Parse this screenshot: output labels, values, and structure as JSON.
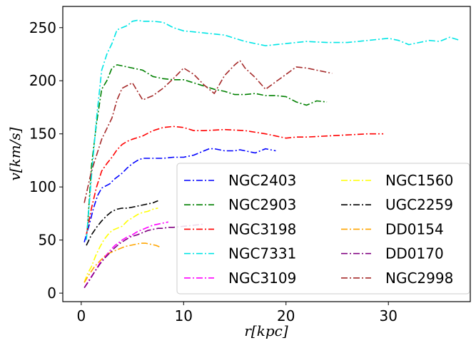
{
  "chart_data": {
    "type": "line",
    "title": "",
    "xlabel": "r[kpc]",
    "ylabel": "v[km/s]",
    "xlim": [
      -1.8,
      38.0
    ],
    "ylim": [
      -8,
      270
    ],
    "xticks": [
      0,
      10,
      20,
      30
    ],
    "yticks": [
      0,
      50,
      100,
      150,
      200,
      250
    ],
    "grid": false,
    "legend_position": "lower-right",
    "legend_columns": 2,
    "line_style": "dash-dot",
    "series": [
      {
        "name": "NGC2403",
        "color": "#0000ff",
        "x": [
          0.3,
          0.8,
          1.2,
          1.6,
          2.0,
          2.4,
          2.8,
          3.2,
          3.6,
          4.0,
          4.5,
          5.0,
          5.5,
          6.0,
          7.0,
          8.0,
          9.0,
          10.0,
          11.0,
          12.0,
          12.5,
          13.0,
          13.5,
          14.0,
          15.0,
          15.5,
          16.0,
          17.0,
          17.5,
          18.0,
          19.0
        ],
        "y": [
          48,
          65,
          80,
          92,
          99,
          101,
          103,
          107,
          110,
          113,
          118,
          122,
          125,
          127,
          127,
          127,
          128,
          128,
          130,
          134,
          136,
          136,
          135,
          134,
          134,
          135,
          134,
          132,
          134,
          136,
          134
        ]
      },
      {
        "name": "NGC2903",
        "color": "#008000",
        "x": [
          0.6,
          1.0,
          1.5,
          2.0,
          2.5,
          3.0,
          3.5,
          4.0,
          5.0,
          6.0,
          7.0,
          8.0,
          9.0,
          10.0,
          11.0,
          12.0,
          13.0,
          14.0,
          15.0,
          16.0,
          17.0,
          18.0,
          19.0,
          20.0,
          21.0,
          22.0,
          23.0,
          24.0
        ],
        "y": [
          60,
          120,
          160,
          192,
          200,
          212,
          215,
          214,
          212,
          210,
          204,
          202,
          201,
          201,
          198,
          195,
          192,
          190,
          187,
          187,
          188,
          186,
          186,
          185,
          180,
          177,
          181,
          180
        ]
      },
      {
        "name": "NGC3198",
        "color": "#ff0000",
        "x": [
          0.5,
          1.0,
          1.5,
          2.0,
          2.5,
          3.0,
          3.5,
          4.0,
          4.5,
          5.0,
          6.0,
          7.0,
          8.0,
          9.0,
          10.0,
          11.0,
          12.0,
          14.0,
          16.0,
          18.0,
          19.0,
          20.0,
          21.0,
          22.0,
          24.0,
          26.0,
          28.0,
          29.5
        ],
        "y": [
          55,
          80,
          100,
          115,
          122,
          128,
          135,
          140,
          143,
          145,
          148,
          153,
          156,
          157,
          156,
          153,
          153,
          154,
          153,
          150,
          148,
          146,
          147,
          147,
          148,
          149,
          150,
          150
        ]
      },
      {
        "name": "NGC7331",
        "color": "#00e5e5",
        "x": [
          0.5,
          1.0,
          1.5,
          2.0,
          2.5,
          3.0,
          3.5,
          4.0,
          4.5,
          5.0,
          5.5,
          6.0,
          7.0,
          8.0,
          9.0,
          10.0,
          11.0,
          12.0,
          13.0,
          14.0,
          15.0,
          16.0,
          17.0,
          18.0,
          19.0,
          20.0,
          22.0,
          24.0,
          26.0,
          28.0,
          30.0,
          31.0,
          32.0,
          33.0,
          34.0,
          35.0,
          36.0,
          37.0
        ],
        "y": [
          50,
          110,
          165,
          210,
          225,
          235,
          248,
          250,
          252,
          256,
          257,
          256,
          256,
          255,
          250,
          247,
          246,
          245,
          244,
          243,
          240,
          237,
          235,
          233,
          234,
          235,
          237,
          236,
          236,
          238,
          240,
          238,
          234,
          236,
          238,
          237,
          241,
          238
        ]
      },
      {
        "name": "NGC3109",
        "color": "#ff00ff",
        "x": [
          0.3,
          0.8,
          1.3,
          1.8,
          2.3,
          2.8,
          3.3,
          4.0,
          4.5,
          5.0,
          5.5,
          6.0,
          6.5,
          7.0,
          7.5,
          8.0,
          8.5
        ],
        "y": [
          5,
          13,
          20,
          28,
          34,
          40,
          45,
          50,
          53,
          55,
          58,
          60,
          62,
          64,
          65,
          66,
          67
        ]
      },
      {
        "name": "NGC1560",
        "color": "#ffff00",
        "x": [
          0.3,
          0.6,
          1.0,
          1.4,
          1.8,
          2.2,
          2.6,
          3.0,
          3.5,
          4.0,
          4.5,
          5.0,
          5.5,
          6.0,
          6.5,
          7.0,
          7.5
        ],
        "y": [
          10,
          18,
          25,
          35,
          43,
          50,
          55,
          59,
          61,
          63,
          68,
          71,
          74,
          76,
          77,
          79,
          80
        ]
      },
      {
        "name": "UGC2259",
        "color": "#000000",
        "x": [
          0.5,
          1.0,
          1.5,
          2.0,
          2.5,
          3.0,
          3.5,
          4.0,
          4.5,
          5.0,
          5.5,
          6.0,
          6.5,
          7.0,
          7.5
        ],
        "y": [
          45,
          55,
          62,
          68,
          73,
          77,
          79,
          80,
          80,
          81,
          82,
          83,
          84,
          85,
          87
        ]
      },
      {
        "name": "DD0154",
        "color": "#ffa500",
        "x": [
          0.3,
          0.8,
          1.3,
          1.8,
          2.3,
          2.8,
          3.3,
          3.8,
          4.3,
          4.8,
          5.3,
          5.8,
          6.3,
          6.8,
          7.3,
          7.8
        ],
        "y": [
          10,
          18,
          25,
          30,
          35,
          38,
          40,
          42,
          44,
          45,
          46,
          47,
          47,
          46,
          45,
          43
        ]
      },
      {
        "name": "DD0170",
        "color": "#800080",
        "x": [
          0.3,
          0.8,
          1.3,
          1.8,
          2.3,
          2.8,
          3.3,
          3.8,
          4.3,
          4.8,
          5.5,
          6.0,
          6.5,
          7.0,
          7.5,
          8.0,
          8.5,
          9.0,
          10.0,
          11.0,
          12.0
        ],
        "y": [
          5,
          12,
          20,
          27,
          33,
          38,
          43,
          47,
          50,
          53,
          55,
          57,
          59,
          60,
          61,
          61,
          62,
          62,
          63,
          64,
          65
        ]
      },
      {
        "name": "NGC2998",
        "color": "#a52a2a",
        "x": [
          0.3,
          1.0,
          2.0,
          3.0,
          3.5,
          4.0,
          5.0,
          6.0,
          7.0,
          8.0,
          9.0,
          10.0,
          11.0,
          12.0,
          13.0,
          14.0,
          15.0,
          15.5,
          16.0,
          17.0,
          18.0,
          19.0,
          20.0,
          21.0,
          22.0,
          23.0,
          24.5
        ],
        "y": [
          85,
          115,
          145,
          165,
          182,
          193,
          198,
          182,
          186,
          193,
          202,
          212,
          206,
          196,
          188,
          205,
          215,
          219,
          212,
          203,
          192,
          199,
          206,
          213,
          212,
          210,
          207
        ]
      }
    ]
  }
}
